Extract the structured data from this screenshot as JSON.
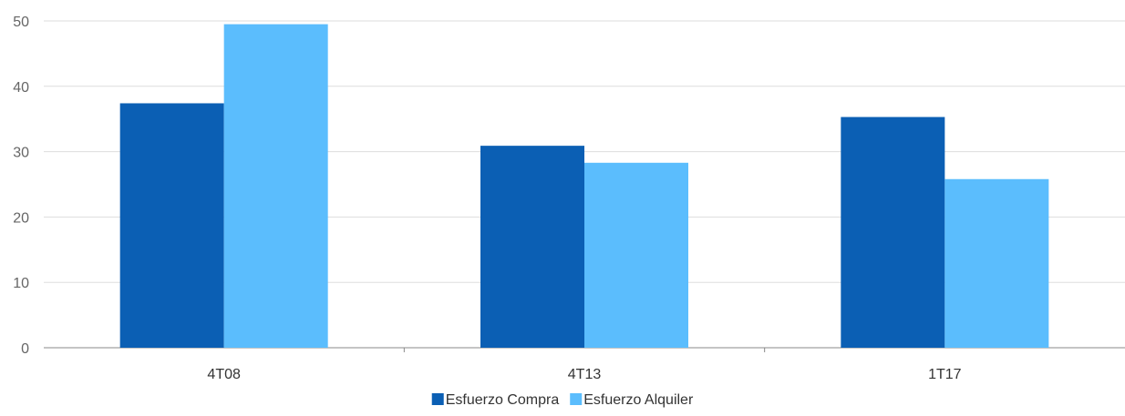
{
  "chart_data": {
    "type": "bar",
    "categories": [
      "4T08",
      "4T13",
      "1T17"
    ],
    "series": [
      {
        "name": "Esfuerzo Compra",
        "values": [
          37.4,
          30.9,
          35.3
        ],
        "color": "#0b5fb4"
      },
      {
        "name": "Esfuerzo Alquiler",
        "values": [
          49.5,
          28.3,
          25.8
        ],
        "color": "#5bbdfd"
      }
    ],
    "y_ticks": [
      "0",
      "10",
      "20",
      "30",
      "40",
      "50"
    ],
    "ylim": [
      0,
      50
    ],
    "grid": true,
    "legend_position": "bottom",
    "gridline_color": "#dddddd",
    "axis_color": "#888888",
    "tick_label_color": "#666666",
    "category_label_color": "#333333"
  }
}
